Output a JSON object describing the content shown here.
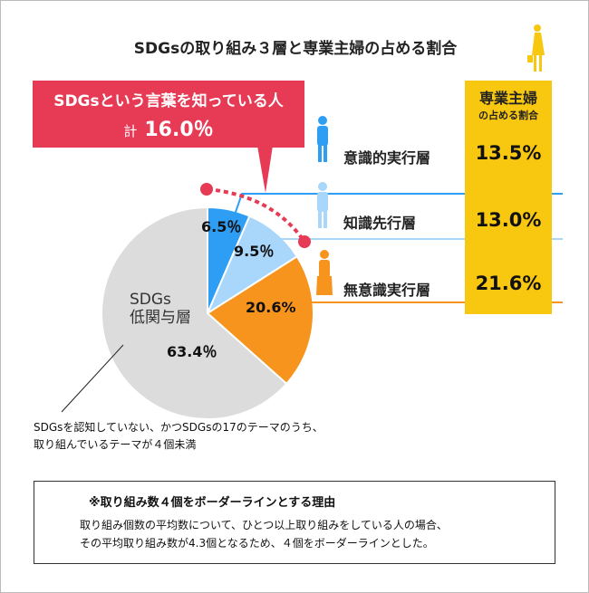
{
  "title": "SDGsの取り組み３層と専業主婦の占める割合",
  "callout": {
    "line1": "SDGsという言葉を知っている人",
    "total_prefix": "計",
    "total_value": "16.0％"
  },
  "housewife_column": {
    "header1": "専業主婦",
    "header2": "の占める割合"
  },
  "tiers": [
    {
      "name": "意識的実行層",
      "housewife_share": "13.5%",
      "color": "#2e9ef5"
    },
    {
      "name": "知識先行層",
      "housewife_share": "13.0%",
      "color": "#a9d6fb"
    },
    {
      "name": "無意識実行層",
      "housewife_share": "21.6%",
      "color": "#f7941d"
    }
  ],
  "low_group": {
    "line1": "SDGs",
    "line2": "低関与層",
    "value": "63.4％"
  },
  "low_group_note": [
    "SDGsを認知していない、かつSDGsの17のテーマのうち、",
    "取り組んでいるテーマが４個未満"
  ],
  "footnote": {
    "heading": "※取り組み数４個をボーダーラインとする理由",
    "lines": [
      "取り組み個数の平均数について、ひとつ以上取り組みをしている人の場合、",
      "その平均取り組み数が4.3個となるため、４個をボーダーラインとした。"
    ]
  },
  "colors": {
    "accent_red": "#e63a55",
    "yellow": "#f8c70f",
    "gray": "#dcdcdc"
  },
  "chart_data": {
    "type": "pie",
    "start": "top, clockwise",
    "categories": [
      "意識的実行層",
      "知識先行層",
      "無意識実行層",
      "SDGs低関与層"
    ],
    "values": [
      6.5,
      9.5,
      20.6,
      63.4
    ],
    "labels": [
      "6.5％",
      "9.5％",
      "20.6%",
      "63.4％"
    ],
    "colors": [
      "#2e9ef5",
      "#a9d6fb",
      "#f7941d",
      "#dcdcdc"
    ]
  }
}
